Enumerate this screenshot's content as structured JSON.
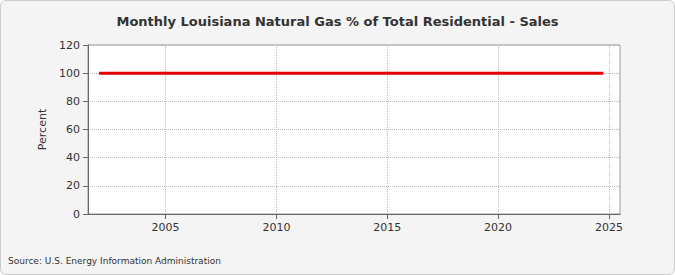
{
  "chart_data": {
    "type": "line",
    "title": "Monthly Louisiana Natural Gas % of Total Residential - Sales",
    "y_label": "Percent",
    "source": "Source: U.S. Energy Information Administration",
    "x": [
      2002,
      2003,
      2004,
      2005,
      2006,
      2007,
      2008,
      2009,
      2010,
      2011,
      2012,
      2013,
      2014,
      2015,
      2016,
      2017,
      2018,
      2019,
      2020,
      2021,
      2022,
      2023,
      2024,
      2024.75
    ],
    "values": [
      100,
      100,
      100,
      100,
      100,
      100,
      100,
      100,
      100,
      100,
      100,
      100,
      100,
      100,
      100,
      100,
      100,
      100,
      100,
      100,
      100,
      100,
      100,
      100
    ],
    "color": "#e00000",
    "xlim": [
      2001.5,
      2025.5
    ],
    "xticks": [
      2005,
      2010,
      2015,
      2020,
      2025
    ],
    "ylim": [
      0,
      120
    ],
    "yticks": [
      0,
      20,
      40,
      60,
      80,
      100,
      120
    ],
    "grid": true
  }
}
